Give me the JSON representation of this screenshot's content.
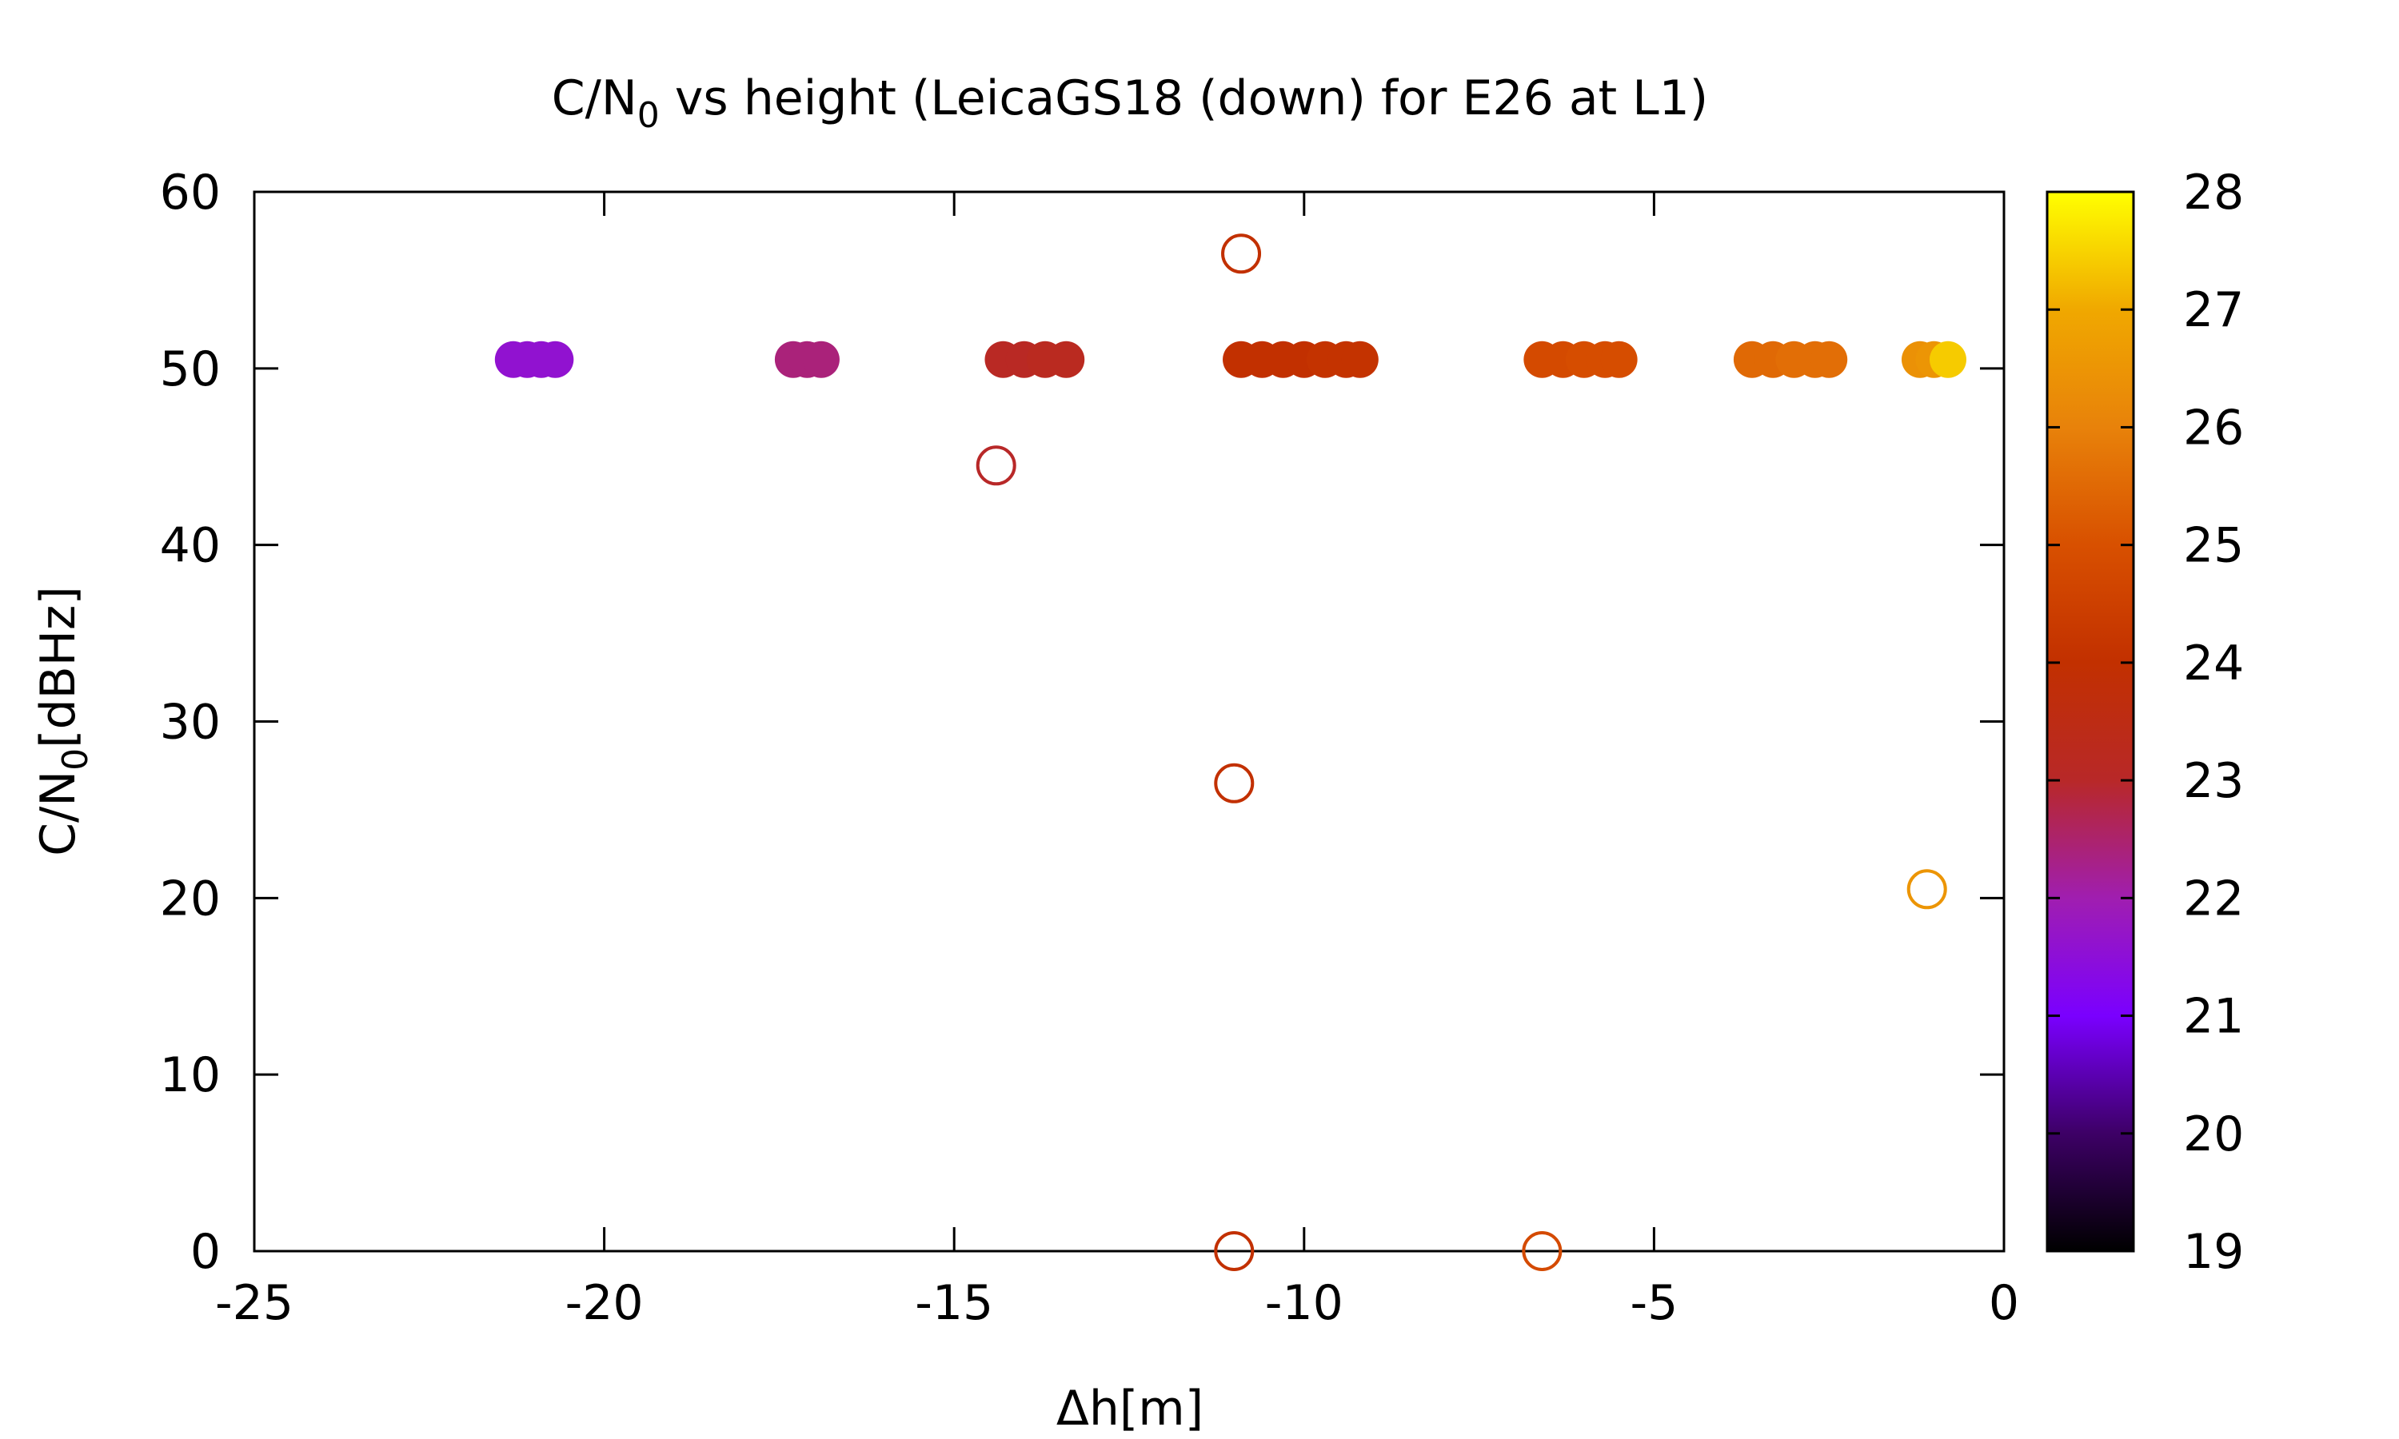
{
  "chart_data": {
    "type": "scatter",
    "title_parts": {
      "before": "C/N",
      "sub": "0",
      "after": " vs height (LeicaGS18 (down) for E26 at L1)"
    },
    "xlabel": "Δh[m]",
    "ylabel_parts": {
      "before": "C/N",
      "sub": "0",
      "after": "[dBHz]"
    },
    "xlim": [
      -25,
      0
    ],
    "ylim": [
      0,
      60
    ],
    "x_ticks": [
      -25,
      -20,
      -15,
      -10,
      -5,
      0
    ],
    "y_ticks": [
      0,
      10,
      20,
      30,
      40,
      50,
      60
    ],
    "grid": false,
    "colorbar": {
      "range": [
        19,
        28
      ],
      "ticks": [
        19,
        20,
        21,
        22,
        23,
        24,
        25,
        26,
        27,
        28
      ],
      "palette": [
        "#000000",
        "#3d0066",
        "#7a00ff",
        "#a01eb0",
        "#b82828",
        "#c23000",
        "#d85000",
        "#e8820a",
        "#f0a800",
        "#ffff00"
      ]
    },
    "series": [
      {
        "marker": "filled-circle",
        "points": [
          {
            "x": -21.3,
            "y": 50.5,
            "c": 21.6
          },
          {
            "x": -21.1,
            "y": 50.5,
            "c": 21.6
          },
          {
            "x": -20.9,
            "y": 50.5,
            "c": 21.6
          },
          {
            "x": -20.7,
            "y": 50.5,
            "c": 21.6
          },
          {
            "x": -17.3,
            "y": 50.5,
            "c": 22.4
          },
          {
            "x": -17.1,
            "y": 50.5,
            "c": 22.4
          },
          {
            "x": -16.9,
            "y": 50.5,
            "c": 22.4
          },
          {
            "x": -14.3,
            "y": 50.5,
            "c": 23.1
          },
          {
            "x": -14.0,
            "y": 50.5,
            "c": 23.1
          },
          {
            "x": -13.7,
            "y": 50.5,
            "c": 23.2
          },
          {
            "x": -13.4,
            "y": 50.5,
            "c": 23.2
          },
          {
            "x": -10.9,
            "y": 50.5,
            "c": 24.0
          },
          {
            "x": -10.6,
            "y": 50.5,
            "c": 24.0
          },
          {
            "x": -10.3,
            "y": 50.5,
            "c": 24.0
          },
          {
            "x": -10.0,
            "y": 50.5,
            "c": 24.0
          },
          {
            "x": -9.7,
            "y": 50.5,
            "c": 24.1
          },
          {
            "x": -9.4,
            "y": 50.5,
            "c": 24.1
          },
          {
            "x": -9.2,
            "y": 50.5,
            "c": 24.1
          },
          {
            "x": -6.6,
            "y": 50.5,
            "c": 24.8
          },
          {
            "x": -6.3,
            "y": 50.5,
            "c": 24.8
          },
          {
            "x": -6.0,
            "y": 50.5,
            "c": 24.9
          },
          {
            "x": -5.7,
            "y": 50.5,
            "c": 24.9
          },
          {
            "x": -5.5,
            "y": 50.5,
            "c": 24.9
          },
          {
            "x": -3.6,
            "y": 50.5,
            "c": 25.5
          },
          {
            "x": -3.3,
            "y": 50.5,
            "c": 25.5
          },
          {
            "x": -3.0,
            "y": 50.5,
            "c": 25.6
          },
          {
            "x": -2.7,
            "y": 50.5,
            "c": 25.6
          },
          {
            "x": -2.5,
            "y": 50.5,
            "c": 25.6
          },
          {
            "x": -1.2,
            "y": 50.5,
            "c": 26.4
          },
          {
            "x": -1.0,
            "y": 50.5,
            "c": 26.5
          },
          {
            "x": -0.8,
            "y": 50.5,
            "c": 27.4
          }
        ]
      },
      {
        "marker": "open-circle",
        "points": [
          {
            "x": -10.9,
            "y": 56.5,
            "c": 24.0
          },
          {
            "x": -14.4,
            "y": 44.5,
            "c": 23.0
          },
          {
            "x": -11.0,
            "y": 26.5,
            "c": 24.0
          },
          {
            "x": -1.1,
            "y": 20.5,
            "c": 26.5
          },
          {
            "x": -11.0,
            "y": 0.0,
            "c": 24.0
          },
          {
            "x": -6.6,
            "y": 0.0,
            "c": 24.8
          }
        ]
      }
    ]
  }
}
